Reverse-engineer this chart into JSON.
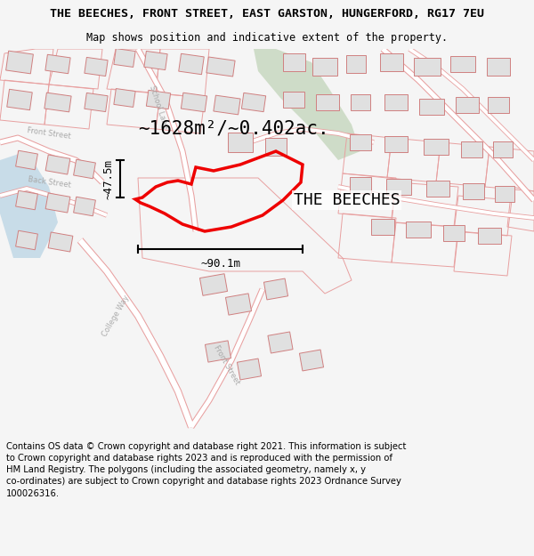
{
  "title_line1": "THE BEECHES, FRONT STREET, EAST GARSTON, HUNGERFORD, RG17 7EU",
  "title_line2": "Map shows position and indicative extent of the property.",
  "property_label": "THE BEECHES",
  "area_label": "~1628m²/~0.402ac.",
  "width_label": "~90.1m",
  "height_label": "~47.5m",
  "footer_text": "Contains OS data © Crown copyright and database right 2021. This information is subject to Crown copyright and database rights 2023 and is reproduced with the permission of HM Land Registry. The polygons (including the associated geometry, namely x, y co-ordinates) are subject to Crown copyright and database rights 2023 Ordnance Survey 100026316.",
  "bg_color": "#f5f5f5",
  "map_bg": "#ffffff",
  "road_color": "#e8a0a0",
  "road_edge_color": "#d06060",
  "parcel_color": "#e8a0a0",
  "property_color": "#ee0000",
  "green_area_color": "#c8d8c0",
  "blue_area_color": "#c8dce8",
  "building_fill": "#e0e0e0",
  "building_edge": "#d08080",
  "title_fontsize": 9.5,
  "subtitle_fontsize": 8.5,
  "footer_fontsize": 7.2,
  "map_label_color": "#aaaaaa",
  "map_label_size": 6.0,
  "area_label_size": 15,
  "dim_label_size": 9,
  "prop_label_size": 13
}
